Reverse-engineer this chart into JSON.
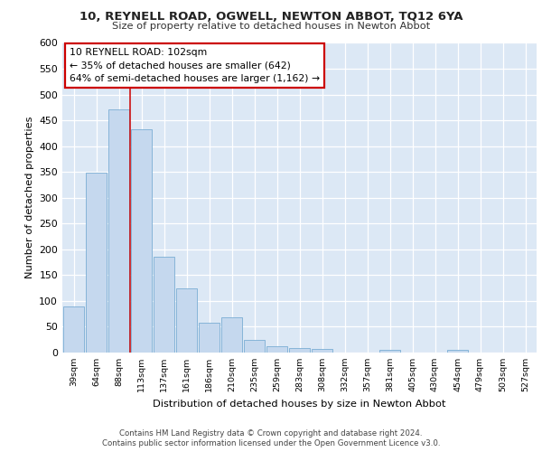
{
  "title1": "10, REYNELL ROAD, OGWELL, NEWTON ABBOT, TQ12 6YA",
  "title2": "Size of property relative to detached houses in Newton Abbot",
  "xlabel": "Distribution of detached houses by size in Newton Abbot",
  "ylabel": "Number of detached properties",
  "categories": [
    "39sqm",
    "64sqm",
    "88sqm",
    "113sqm",
    "137sqm",
    "161sqm",
    "186sqm",
    "210sqm",
    "235sqm",
    "259sqm",
    "283sqm",
    "308sqm",
    "332sqm",
    "357sqm",
    "381sqm",
    "405sqm",
    "430sqm",
    "454sqm",
    "479sqm",
    "503sqm",
    "527sqm"
  ],
  "values": [
    90,
    348,
    472,
    432,
    185,
    124,
    57,
    68,
    24,
    12,
    9,
    7,
    0,
    0,
    5,
    0,
    0,
    5,
    0,
    0,
    0
  ],
  "bar_color": "#c5d8ee",
  "bar_edge_color": "#7aadd4",
  "property_line_x": 2.5,
  "annotation_line1": "10 REYNELL ROAD: 102sqm",
  "annotation_line2": "← 35% of detached houses are smaller (642)",
  "annotation_line3": "64% of semi-detached houses are larger (1,162) →",
  "annotation_box_color": "#cc0000",
  "ylim": [
    0,
    600
  ],
  "yticks": [
    0,
    50,
    100,
    150,
    200,
    250,
    300,
    350,
    400,
    450,
    500,
    550,
    600
  ],
  "footer1": "Contains HM Land Registry data © Crown copyright and database right 2024.",
  "footer2": "Contains public sector information licensed under the Open Government Licence v3.0.",
  "fig_bg_color": "#ffffff",
  "plot_bg_color": "#dce8f5"
}
